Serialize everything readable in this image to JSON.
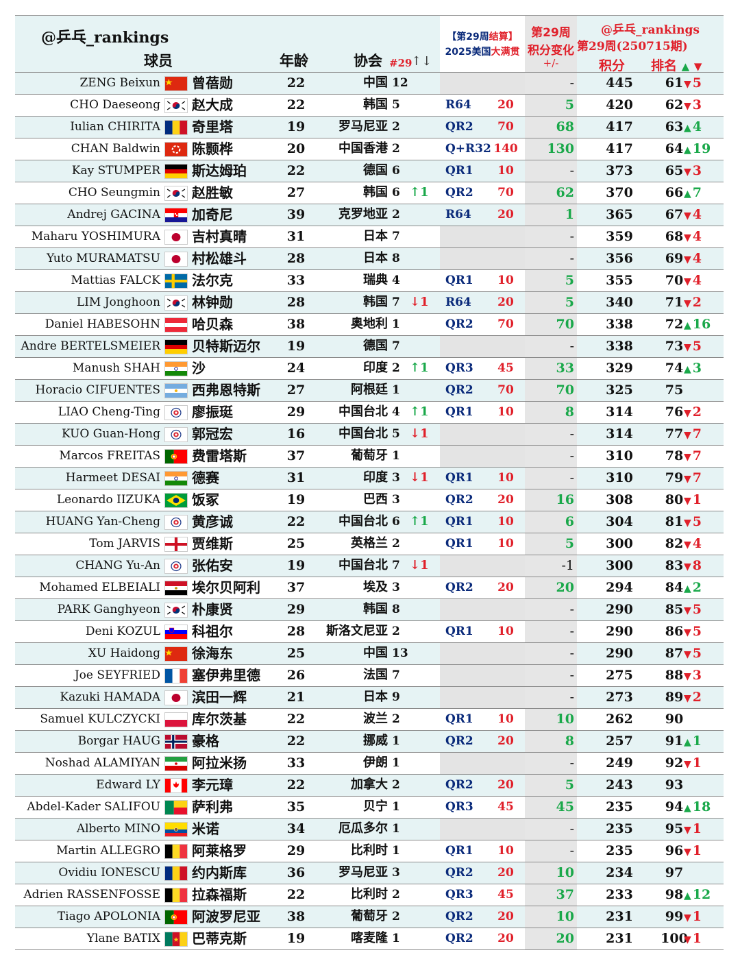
{
  "header": {
    "brand": "@乒乓_rankings",
    "col_player": "球员",
    "col_age": "年龄",
    "col_assoc": "协会",
    "col_assoc_week": "#29",
    "col_assoc_arrows": "↑↓",
    "event_line1_a": "【第29周",
    "event_line1_b": "结算】",
    "event_line2_a": "2025美国",
    "event_line2_b": "大满贯",
    "change_line1": "第29周",
    "change_line2": "积分变化",
    "change_line3": "+/-",
    "rank_line1": "@乒乓_rankings",
    "rank_line2": "第29周(250715期)",
    "col_points": "积分",
    "col_rank": "排名",
    "col_rank_up": "▲",
    "col_rank_down": "▼"
  },
  "colors": {
    "tint": "#e6f3f4",
    "grey": "#e6e6e6",
    "red": "#e0202a",
    "green": "#1aa84a",
    "navy": "#0a2a7a"
  },
  "rows": [
    {
      "en": "ZENG Beixun",
      "flag": "china",
      "cn": "曾蓓勋",
      "age": "22",
      "assoc": "中国",
      "arank": "12",
      "achg": "",
      "achg_dir": "",
      "round": "",
      "rpts": "",
      "delta": "-",
      "pts": "445",
      "rank": "61",
      "move": "5",
      "move_dir": "down"
    },
    {
      "en": "CHO Daeseong",
      "flag": "korea",
      "cn": "赵大成",
      "age": "22",
      "assoc": "韩国",
      "arank": "5",
      "achg": "",
      "achg_dir": "",
      "round": "R64",
      "rpts": "20",
      "delta": "5",
      "pts": "420",
      "rank": "62",
      "move": "3",
      "move_dir": "down"
    },
    {
      "en": "Iulian CHIRITA",
      "flag": "romania",
      "cn": "奇里塔",
      "age": "19",
      "assoc": "罗马尼亚",
      "arank": "2",
      "achg": "",
      "achg_dir": "",
      "round": "QR2",
      "rpts": "70",
      "delta": "68",
      "pts": "417",
      "rank": "63",
      "move": "4",
      "move_dir": "up"
    },
    {
      "en": "CHAN Baldwin",
      "flag": "hongkong",
      "cn": "陈颢桦",
      "age": "20",
      "assoc": "中国香港",
      "arank": "2",
      "achg": "",
      "achg_dir": "",
      "round": "Q+R32",
      "rpts": "140",
      "delta": "130",
      "pts": "417",
      "rank": "64",
      "move": "19",
      "move_dir": "up"
    },
    {
      "en": "Kay STUMPER",
      "flag": "germany",
      "cn": "斯达姆珀",
      "age": "22",
      "assoc": "德国",
      "arank": "6",
      "achg": "",
      "achg_dir": "",
      "round": "QR1",
      "rpts": "10",
      "delta": "-",
      "pts": "373",
      "rank": "65",
      "move": "3",
      "move_dir": "down"
    },
    {
      "en": "CHO Seungmin",
      "flag": "korea",
      "cn": "赵胜敏",
      "age": "27",
      "assoc": "韩国",
      "arank": "6",
      "achg": "↑1",
      "achg_dir": "up",
      "round": "QR2",
      "rpts": "70",
      "delta": "62",
      "pts": "370",
      "rank": "66",
      "move": "7",
      "move_dir": "up"
    },
    {
      "en": "Andrej GACINA",
      "flag": "croatia",
      "cn": "加奇尼",
      "age": "39",
      "assoc": "克罗地亚",
      "arank": "2",
      "achg": "",
      "achg_dir": "",
      "round": "R64",
      "rpts": "20",
      "delta": "1",
      "pts": "365",
      "rank": "67",
      "move": "4",
      "move_dir": "down"
    },
    {
      "en": "Maharu YOSHIMURA",
      "flag": "japan",
      "cn": "吉村真晴",
      "age": "31",
      "assoc": "日本",
      "arank": "7",
      "achg": "",
      "achg_dir": "",
      "round": "",
      "rpts": "",
      "delta": "-",
      "pts": "359",
      "rank": "68",
      "move": "4",
      "move_dir": "down"
    },
    {
      "en": "Yuto MURAMATSU",
      "flag": "japan",
      "cn": "村松雄斗",
      "age": "28",
      "assoc": "日本",
      "arank": "8",
      "achg": "",
      "achg_dir": "",
      "round": "",
      "rpts": "",
      "delta": "-",
      "pts": "356",
      "rank": "69",
      "move": "4",
      "move_dir": "down"
    },
    {
      "en": "Mattias FALCK",
      "flag": "sweden",
      "cn": "法尔克",
      "age": "33",
      "assoc": "瑞典",
      "arank": "4",
      "achg": "",
      "achg_dir": "",
      "round": "QR1",
      "rpts": "10",
      "delta": "5",
      "pts": "355",
      "rank": "70",
      "move": "4",
      "move_dir": "down"
    },
    {
      "en": "LIM Jonghoon",
      "flag": "korea",
      "cn": "林钟勋",
      "age": "28",
      "assoc": "韩国",
      "arank": "7",
      "achg": "↓1",
      "achg_dir": "down",
      "round": "R64",
      "rpts": "20",
      "delta": "5",
      "pts": "340",
      "rank": "71",
      "move": "2",
      "move_dir": "down"
    },
    {
      "en": "Daniel HABESOHN",
      "flag": "austria",
      "cn": "哈贝森",
      "age": "38",
      "assoc": "奥地利",
      "arank": "1",
      "achg": "",
      "achg_dir": "",
      "round": "QR2",
      "rpts": "70",
      "delta": "70",
      "pts": "338",
      "rank": "72",
      "move": "16",
      "move_dir": "up"
    },
    {
      "en": "Andre BERTELSMEIER",
      "flag": "germany",
      "cn": "贝特斯迈尔",
      "age": "19",
      "assoc": "德国",
      "arank": "7",
      "achg": "",
      "achg_dir": "",
      "round": "",
      "rpts": "",
      "delta": "-",
      "pts": "338",
      "rank": "73",
      "move": "5",
      "move_dir": "down"
    },
    {
      "en": "Manush SHAH",
      "flag": "india",
      "cn": "沙",
      "age": "24",
      "assoc": "印度",
      "arank": "2",
      "achg": "↑1",
      "achg_dir": "up",
      "round": "QR3",
      "rpts": "45",
      "delta": "33",
      "pts": "329",
      "rank": "74",
      "move": "3",
      "move_dir": "up"
    },
    {
      "en": "Horacio CIFUENTES",
      "flag": "argentina",
      "cn": "西弗恩特斯",
      "age": "27",
      "assoc": "阿根廷",
      "arank": "1",
      "achg": "",
      "achg_dir": "",
      "round": "QR2",
      "rpts": "70",
      "delta": "70",
      "pts": "325",
      "rank": "75",
      "move": "",
      "move_dir": ""
    },
    {
      "en": "LIAO Cheng-Ting",
      "flag": "tpe",
      "cn": "廖振珽",
      "age": "29",
      "assoc": "中国台北",
      "arank": "4",
      "achg": "↑1",
      "achg_dir": "up",
      "round": "QR1",
      "rpts": "10",
      "delta": "8",
      "pts": "314",
      "rank": "76",
      "move": "2",
      "move_dir": "down"
    },
    {
      "en": "KUO Guan-Hong",
      "flag": "tpe",
      "cn": "郭冠宏",
      "age": "16",
      "assoc": "中国台北",
      "arank": "5",
      "achg": "↓1",
      "achg_dir": "down",
      "round": "",
      "rpts": "",
      "delta": "-",
      "pts": "314",
      "rank": "77",
      "move": "7",
      "move_dir": "down"
    },
    {
      "en": "Marcos FREITAS",
      "flag": "portugal",
      "cn": "费雷塔斯",
      "age": "37",
      "assoc": "葡萄牙",
      "arank": "1",
      "achg": "",
      "achg_dir": "",
      "round": "",
      "rpts": "",
      "delta": "-",
      "pts": "310",
      "rank": "78",
      "move": "7",
      "move_dir": "down"
    },
    {
      "en": "Harmeet DESAI",
      "flag": "india",
      "cn": "德赛",
      "age": "31",
      "assoc": "印度",
      "arank": "3",
      "achg": "↓1",
      "achg_dir": "down",
      "round": "QR1",
      "rpts": "10",
      "delta": "-",
      "pts": "310",
      "rank": "79",
      "move": "7",
      "move_dir": "down"
    },
    {
      "en": "Leonardo IIZUKA",
      "flag": "brazil",
      "cn": "饭冢",
      "age": "19",
      "assoc": "巴西",
      "arank": "3",
      "achg": "",
      "achg_dir": "",
      "round": "QR2",
      "rpts": "20",
      "delta": "16",
      "pts": "308",
      "rank": "80",
      "move": "1",
      "move_dir": "down"
    },
    {
      "en": "HUANG Yan-Cheng",
      "flag": "tpe",
      "cn": "黄彦诚",
      "age": "22",
      "assoc": "中国台北",
      "arank": "6",
      "achg": "↑1",
      "achg_dir": "up",
      "round": "QR1",
      "rpts": "10",
      "delta": "6",
      "pts": "304",
      "rank": "81",
      "move": "5",
      "move_dir": "down"
    },
    {
      "en": "Tom JARVIS",
      "flag": "england",
      "cn": "贾维斯",
      "age": "25",
      "assoc": "英格兰",
      "arank": "2",
      "achg": "",
      "achg_dir": "",
      "round": "QR1",
      "rpts": "10",
      "delta": "5",
      "pts": "300",
      "rank": "82",
      "move": "4",
      "move_dir": "down"
    },
    {
      "en": "CHANG Yu-An",
      "flag": "tpe",
      "cn": "张佑安",
      "age": "19",
      "assoc": "中国台北",
      "arank": "7",
      "achg": "↓1",
      "achg_dir": "down",
      "round": "",
      "rpts": "",
      "delta": "-1",
      "pts": "300",
      "rank": "83",
      "move": "8",
      "move_dir": "down"
    },
    {
      "en": "Mohamed ELBEIALI",
      "flag": "egypt",
      "cn": "埃尔贝阿利",
      "age": "37",
      "assoc": "埃及",
      "arank": "3",
      "achg": "",
      "achg_dir": "",
      "round": "QR2",
      "rpts": "20",
      "delta": "20",
      "pts": "294",
      "rank": "84",
      "move": "2",
      "move_dir": "up"
    },
    {
      "en": "PARK Ganghyeon",
      "flag": "korea",
      "cn": "朴康贤",
      "age": "29",
      "assoc": "韩国",
      "arank": "8",
      "achg": "",
      "achg_dir": "",
      "round": "",
      "rpts": "",
      "delta": "-",
      "pts": "290",
      "rank": "85",
      "move": "5",
      "move_dir": "down"
    },
    {
      "en": "Deni KOZUL",
      "flag": "slovenia",
      "cn": "科祖尔",
      "age": "28",
      "assoc": "斯洛文尼亚",
      "arank": "2",
      "achg": "",
      "achg_dir": "",
      "round": "QR1",
      "rpts": "10",
      "delta": "-",
      "pts": "290",
      "rank": "86",
      "move": "5",
      "move_dir": "down"
    },
    {
      "en": "XU Haidong",
      "flag": "china",
      "cn": "徐海东",
      "age": "25",
      "assoc": "中国",
      "arank": "13",
      "achg": "",
      "achg_dir": "",
      "round": "",
      "rpts": "",
      "delta": "-",
      "pts": "290",
      "rank": "87",
      "move": "5",
      "move_dir": "down"
    },
    {
      "en": "Joe SEYFRIED",
      "flag": "france",
      "cn": "塞伊弗里德",
      "age": "26",
      "assoc": "法国",
      "arank": "7",
      "achg": "",
      "achg_dir": "",
      "round": "",
      "rpts": "",
      "delta": "-",
      "pts": "275",
      "rank": "88",
      "move": "3",
      "move_dir": "down"
    },
    {
      "en": "Kazuki HAMADA",
      "flag": "japan",
      "cn": "滨田一辉",
      "age": "21",
      "assoc": "日本",
      "arank": "9",
      "achg": "",
      "achg_dir": "",
      "round": "",
      "rpts": "",
      "delta": "-",
      "pts": "273",
      "rank": "89",
      "move": "2",
      "move_dir": "down"
    },
    {
      "en": "Samuel KULCZYCKI",
      "flag": "poland",
      "cn": "库尔茨基",
      "age": "22",
      "assoc": "波兰",
      "arank": "2",
      "achg": "",
      "achg_dir": "",
      "round": "QR1",
      "rpts": "10",
      "delta": "10",
      "pts": "262",
      "rank": "90",
      "move": "",
      "move_dir": ""
    },
    {
      "en": "Borgar HAUG",
      "flag": "norway",
      "cn": "豪格",
      "age": "22",
      "assoc": "挪威",
      "arank": "1",
      "achg": "",
      "achg_dir": "",
      "round": "QR2",
      "rpts": "20",
      "delta": "8",
      "pts": "257",
      "rank": "91",
      "move": "1",
      "move_dir": "up"
    },
    {
      "en": "Noshad ALAMIYAN",
      "flag": "iran",
      "cn": "阿拉米扬",
      "age": "33",
      "assoc": "伊朗",
      "arank": "1",
      "achg": "",
      "achg_dir": "",
      "round": "",
      "rpts": "",
      "delta": "-",
      "pts": "249",
      "rank": "92",
      "move": "1",
      "move_dir": "down"
    },
    {
      "en": "Edward LY",
      "flag": "canada",
      "cn": "李元璋",
      "age": "22",
      "assoc": "加拿大",
      "arank": "2",
      "achg": "",
      "achg_dir": "",
      "round": "QR2",
      "rpts": "20",
      "delta": "5",
      "pts": "243",
      "rank": "93",
      "move": "",
      "move_dir": ""
    },
    {
      "en": "Abdel-Kader SALIFOU",
      "flag": "benin",
      "cn": "萨利弗",
      "age": "35",
      "assoc": "贝宁",
      "arank": "1",
      "achg": "",
      "achg_dir": "",
      "round": "QR3",
      "rpts": "45",
      "delta": "45",
      "pts": "235",
      "rank": "94",
      "move": "18",
      "move_dir": "up"
    },
    {
      "en": "Alberto MINO",
      "flag": "ecuador",
      "cn": "米诺",
      "age": "34",
      "assoc": "厄瓜多尔",
      "arank": "1",
      "achg": "",
      "achg_dir": "",
      "round": "",
      "rpts": "",
      "delta": "-",
      "pts": "235",
      "rank": "95",
      "move": "1",
      "move_dir": "down"
    },
    {
      "en": "Martin ALLEGRO",
      "flag": "belgium",
      "cn": "阿莱格罗",
      "age": "29",
      "assoc": "比利时",
      "arank": "1",
      "achg": "",
      "achg_dir": "",
      "round": "QR1",
      "rpts": "10",
      "delta": "-",
      "pts": "235",
      "rank": "96",
      "move": "1",
      "move_dir": "down"
    },
    {
      "en": "Ovidiu IONESCU",
      "flag": "romania",
      "cn": "约内斯库",
      "age": "36",
      "assoc": "罗马尼亚",
      "arank": "3",
      "achg": "",
      "achg_dir": "",
      "round": "QR2",
      "rpts": "20",
      "delta": "10",
      "pts": "234",
      "rank": "97",
      "move": "",
      "move_dir": ""
    },
    {
      "en": "Adrien RASSENFOSSE",
      "flag": "belgium",
      "cn": "拉森福斯",
      "age": "22",
      "assoc": "比利时",
      "arank": "2",
      "achg": "",
      "achg_dir": "",
      "round": "QR3",
      "rpts": "45",
      "delta": "37",
      "pts": "233",
      "rank": "98",
      "move": "12",
      "move_dir": "up"
    },
    {
      "en": "Tiago APOLONIA",
      "flag": "portugal",
      "cn": "阿波罗尼亚",
      "age": "38",
      "assoc": "葡萄牙",
      "arank": "2",
      "achg": "",
      "achg_dir": "",
      "round": "QR2",
      "rpts": "20",
      "delta": "10",
      "pts": "231",
      "rank": "99",
      "move": "1",
      "move_dir": "down"
    },
    {
      "en": "Ylane BATIX",
      "flag": "cameroon",
      "cn": "巴蒂克斯",
      "age": "19",
      "assoc": "喀麦隆",
      "arank": "1",
      "achg": "",
      "achg_dir": "",
      "round": "QR2",
      "rpts": "20",
      "delta": "20",
      "pts": "231",
      "rank": "100",
      "move": "1",
      "move_dir": "down"
    }
  ]
}
